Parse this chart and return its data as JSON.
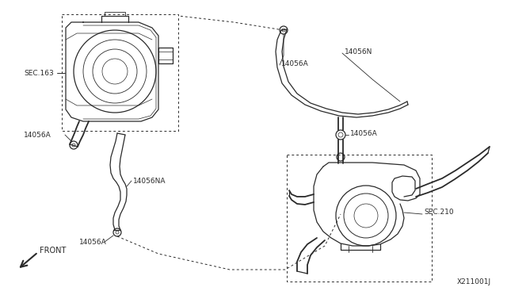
{
  "bg_color": "#ffffff",
  "line_color": "#2a2a2a",
  "diagram_id": "X211001J",
  "labels": {
    "sec163": "SEC.163",
    "sec210": "SEC.210",
    "part_14056A_1": "14056A",
    "part_14056A_2": "14056A",
    "part_14056A_3": "14056A",
    "part_14056A_4": "14056A",
    "part_14056NA": "14056NA",
    "part_14056N": "14056N"
  },
  "front_text": "FRONT"
}
